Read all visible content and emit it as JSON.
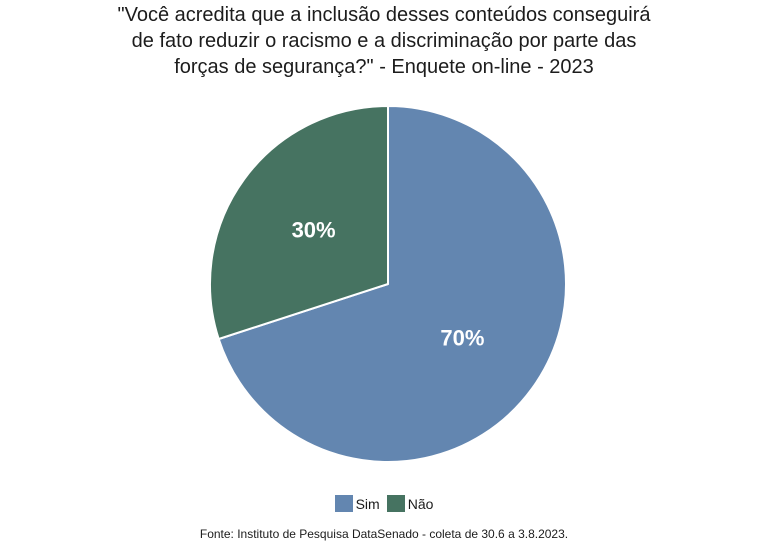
{
  "chart_data": {
    "type": "pie",
    "title": "\"Você acredita que a inclusão desses conteúdos conseguirá de fato reduzir o racismo e a discriminação por parte das forças de segurança?\" - Enquete on-line - 2023",
    "title_lines": [
      "\"Você acredita que a inclusão desses conteúdos conseguirá",
      "de fato reduzir o racismo e a discriminação por parte das",
      "forças de segurança?\" - Enquete on-line - 2023"
    ],
    "categories": [
      "Sim",
      "Não"
    ],
    "slugs": [
      "sim",
      "nao"
    ],
    "values": [
      70,
      30
    ],
    "labels": [
      "70%",
      "30%"
    ],
    "colors": [
      "#6386b0",
      "#467361"
    ],
    "slice_border_color": "#ffffff",
    "legend_position": "bottom",
    "source": "Fonte: Instituto de Pesquisa DataSenado - coleta de 30.6 a 3.8.2023."
  }
}
